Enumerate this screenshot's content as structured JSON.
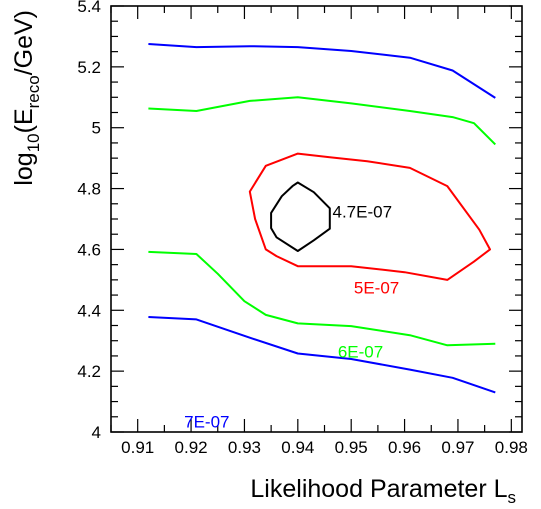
{
  "chart_data": {
    "type": "line",
    "title": "",
    "xlabel": {
      "main": "Likelihood Parameter L",
      "sub": "s"
    },
    "ylabel": {
      "pre": "log",
      "sub1": "10",
      "mid": "(E",
      "sub2": "reco",
      "post": "/GeV)"
    },
    "xlim": [
      0.905,
      0.982
    ],
    "ylim": [
      4.0,
      5.4
    ],
    "x_ticks": [
      "0.91",
      "0.92",
      "0.93",
      "0.94",
      "0.95",
      "0.96",
      "0.97",
      "0.98"
    ],
    "y_ticks": [
      "4",
      "4.2",
      "4.4",
      "4.6",
      "4.8",
      "5",
      "5.2",
      "5.4"
    ],
    "grid": false,
    "legend": "none",
    "series": [
      {
        "name": "7E-07",
        "color": "#0000ff",
        "closed": false,
        "points": [
          [
            0.912,
            5.275
          ],
          [
            0.921,
            5.265
          ],
          [
            0.931,
            5.268
          ],
          [
            0.94,
            5.265
          ],
          [
            0.95,
            5.252
          ],
          [
            0.961,
            5.23
          ],
          [
            0.969,
            5.188
          ],
          [
            0.977,
            5.098
          ]
        ]
      },
      {
        "name": "6E-07",
        "color": "#00ff00",
        "closed": false,
        "points": [
          [
            0.912,
            5.063
          ],
          [
            0.921,
            5.055
          ],
          [
            0.931,
            5.088
          ],
          [
            0.94,
            5.1
          ],
          [
            0.95,
            5.08
          ],
          [
            0.961,
            5.055
          ],
          [
            0.969,
            5.035
          ],
          [
            0.973,
            5.015
          ],
          [
            0.977,
            4.945
          ]
        ]
      },
      {
        "name": "5E-07",
        "color": "#ff0000",
        "closed": true,
        "points": [
          [
            0.934,
            4.875
          ],
          [
            0.94,
            4.915
          ],
          [
            0.946,
            4.903
          ],
          [
            0.953,
            4.89
          ],
          [
            0.961,
            4.868
          ],
          [
            0.968,
            4.808
          ],
          [
            0.974,
            4.665
          ],
          [
            0.976,
            4.6
          ],
          [
            0.973,
            4.56
          ],
          [
            0.968,
            4.5
          ],
          [
            0.96,
            4.525
          ],
          [
            0.95,
            4.545
          ],
          [
            0.94,
            4.545
          ],
          [
            0.936,
            4.578
          ],
          [
            0.934,
            4.6
          ],
          [
            0.932,
            4.7
          ],
          [
            0.931,
            4.79
          ]
        ]
      },
      {
        "name": "4.7E-07",
        "color": "#000000",
        "closed": true,
        "points": [
          [
            0.937,
            4.775
          ],
          [
            0.939,
            4.808
          ],
          [
            0.94,
            4.82
          ],
          [
            0.943,
            4.788
          ],
          [
            0.946,
            4.735
          ],
          [
            0.946,
            4.668
          ],
          [
            0.943,
            4.63
          ],
          [
            0.94,
            4.595
          ],
          [
            0.936,
            4.64
          ],
          [
            0.935,
            4.67
          ],
          [
            0.935,
            4.72
          ]
        ]
      },
      {
        "name": "6E-07",
        "color": "#00ff00",
        "closed": false,
        "points": [
          [
            0.912,
            4.592
          ],
          [
            0.921,
            4.585
          ],
          [
            0.925,
            4.52
          ],
          [
            0.93,
            4.43
          ],
          [
            0.934,
            4.385
          ],
          [
            0.94,
            4.357
          ],
          [
            0.95,
            4.348
          ],
          [
            0.961,
            4.318
          ],
          [
            0.968,
            4.285
          ],
          [
            0.977,
            4.29
          ]
        ]
      },
      {
        "name": "7E-07",
        "color": "#0000ff",
        "closed": false,
        "points": [
          [
            0.912,
            4.378
          ],
          [
            0.921,
            4.37
          ],
          [
            0.931,
            4.31
          ],
          [
            0.94,
            4.258
          ],
          [
            0.95,
            4.24
          ],
          [
            0.961,
            4.205
          ],
          [
            0.969,
            4.178
          ],
          [
            0.977,
            4.13
          ]
        ]
      }
    ],
    "annotations": [
      {
        "text": "4.7E-07",
        "x": 0.9465,
        "y": 4.705,
        "color": "#000000"
      },
      {
        "text": "5E-07",
        "x": 0.9505,
        "y": 4.455,
        "color": "#ff0000"
      },
      {
        "text": "6E-07",
        "x": 0.9475,
        "y": 4.245,
        "color": "#00ff00"
      },
      {
        "text": "7E-07",
        "x": 0.9187,
        "y": 4.015,
        "color": "#0000ff"
      }
    ]
  }
}
